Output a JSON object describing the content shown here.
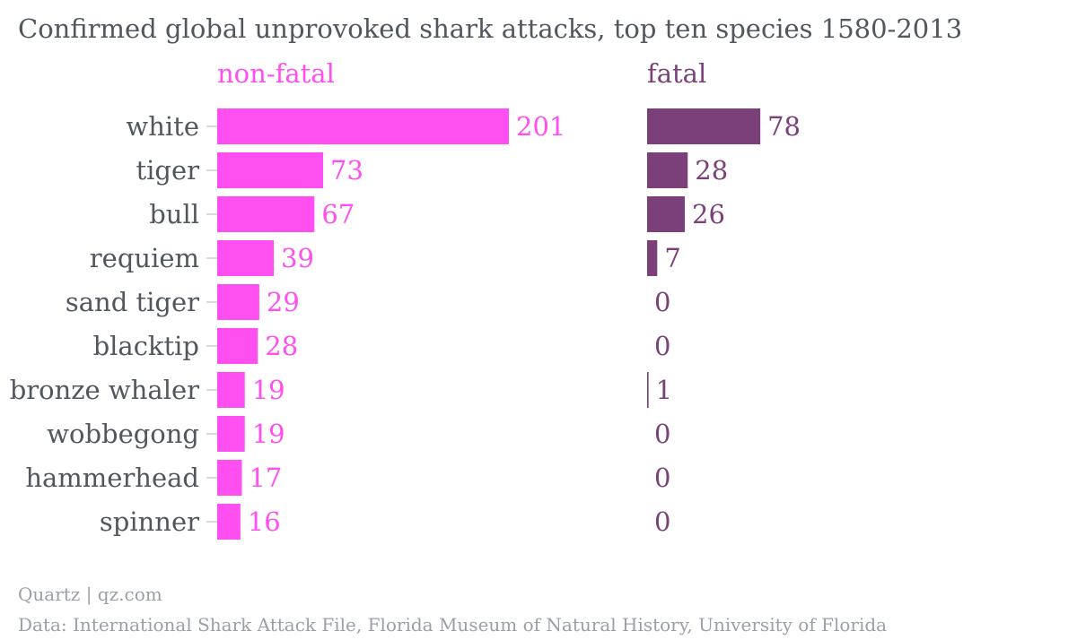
{
  "colors": {
    "nonfatal": "#ff4ff0",
    "fatal": "#7b3f7a",
    "text": "#51575e",
    "footer": "#9aa0a6",
    "tick": "#cccccc"
  },
  "footer": {
    "source_line1": "Quartz | qz.com",
    "source_line2": "Data: International Shark Attack File, Florida Museum of Natural History, University of Florida"
  },
  "chart_data": {
    "type": "bar",
    "orientation": "horizontal",
    "title": "Confirmed global unprovoked shark attacks, top ten species 1580-2013",
    "categories": [
      "white",
      "tiger",
      "bull",
      "requiem",
      "sand tiger",
      "blacktip",
      "bronze whaler",
      "wobbegong",
      "hammerhead",
      "spinner"
    ],
    "series": [
      {
        "name": "non-fatal",
        "values": [
          201,
          73,
          67,
          39,
          29,
          28,
          19,
          19,
          17,
          16
        ]
      },
      {
        "name": "fatal",
        "values": [
          78,
          28,
          26,
          7,
          0,
          0,
          1,
          0,
          0,
          0
        ]
      }
    ],
    "xlim": [
      0,
      201
    ],
    "grid": false,
    "legend": "panel titles above each column"
  }
}
